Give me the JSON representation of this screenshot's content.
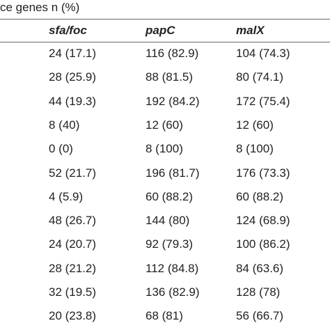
{
  "table": {
    "header_title": "ce genes n (%)",
    "columns": [
      "sfa/foc",
      "papC",
      "malX"
    ],
    "left_fragments": [
      ")",
      "’",
      ")",
      "",
      "",
      ")",
      "’",
      "’",
      ")",
      "’",
      ")",
      "’"
    ],
    "rows": [
      [
        "24 (17.1)",
        "116 (82.9)",
        "104 (74.3)"
      ],
      [
        "28 (25.9)",
        "88 (81.5)",
        "80 (74.1)"
      ],
      [
        "44 (19.3)",
        "192 (84.2)",
        "172 (75.4)"
      ],
      [
        "8 (40)",
        "12 (60)",
        "12 (60)"
      ],
      [
        "0 (0)",
        "8 (100)",
        "8 (100)"
      ],
      [
        "52 (21.7)",
        "196 (81.7)",
        "176 (73.3)"
      ],
      [
        "4 (5.9)",
        "60 (88.2)",
        "60 (88.2)"
      ],
      [
        "48 (26.7)",
        "144 (80)",
        "124 (68.9)"
      ],
      [
        "24 (20.7)",
        "92 (79.3)",
        "100 (86.2)"
      ],
      [
        "28 (21.2)",
        "112 (84.8)",
        "84 (63.6)"
      ],
      [
        "32 (19.5)",
        "136 (82.9)",
        "128 (78)"
      ],
      [
        "20 (23.8)",
        "68 (81)",
        "56 (66.7)"
      ]
    ]
  }
}
